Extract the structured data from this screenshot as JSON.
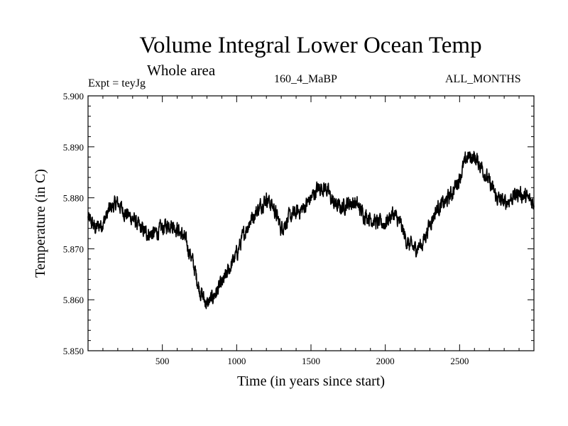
{
  "header": {
    "title": "Volume Integral Lower Ocean Temp",
    "subtitle": "Whole area",
    "experiment": "Expt = teyJg",
    "run_name": "160_4_MaBP",
    "months": "ALL_MONTHS"
  },
  "colors": {
    "line": "#000000",
    "axis": "#000000",
    "background": "#ffffff"
  },
  "chart_data": {
    "type": "line",
    "title": "Volume Integral Lower Ocean Temp",
    "subtitle": "Whole area",
    "xlabel": "Time (in years since start)",
    "ylabel": "Temperature (in C)",
    "xlim": [
      0,
      3000
    ],
    "ylim": [
      5.85,
      5.9
    ],
    "x_ticks": [
      500,
      1000,
      1500,
      2000,
      2500
    ],
    "x_tick_labels": [
      "500",
      "1000",
      "1500",
      "2000",
      "2500"
    ],
    "y_ticks": [
      5.85,
      5.86,
      5.87,
      5.88,
      5.89,
      5.9
    ],
    "y_tick_labels": [
      "5.850",
      "5.860",
      "5.870",
      "5.880",
      "5.890",
      "5.900"
    ],
    "grid": false,
    "legend": "none",
    "series": [
      {
        "name": "Volume Integral Lower Ocean Temp",
        "noise_amplitude": 0.0012,
        "x": [
          0,
          50,
          100,
          150,
          200,
          250,
          300,
          350,
          400,
          450,
          500,
          550,
          600,
          650,
          700,
          750,
          800,
          850,
          900,
          950,
          1000,
          1050,
          1100,
          1150,
          1200,
          1250,
          1300,
          1350,
          1400,
          1450,
          1500,
          1550,
          1600,
          1650,
          1700,
          1750,
          1800,
          1850,
          1900,
          1950,
          2000,
          2050,
          2100,
          2150,
          2200,
          2250,
          2300,
          2350,
          2400,
          2450,
          2500,
          2550,
          2600,
          2650,
          2700,
          2750,
          2800,
          2850,
          2900,
          2950,
          3000
        ],
        "values": [
          5.876,
          5.874,
          5.875,
          5.878,
          5.879,
          5.877,
          5.876,
          5.874,
          5.873,
          5.873,
          5.874,
          5.875,
          5.874,
          5.872,
          5.868,
          5.862,
          5.859,
          5.861,
          5.863,
          5.866,
          5.869,
          5.873,
          5.876,
          5.878,
          5.88,
          5.878,
          5.874,
          5.876,
          5.877,
          5.878,
          5.88,
          5.882,
          5.882,
          5.879,
          5.878,
          5.879,
          5.879,
          5.877,
          5.876,
          5.875,
          5.875,
          5.877,
          5.875,
          5.871,
          5.87,
          5.871,
          5.875,
          5.878,
          5.879,
          5.881,
          5.884,
          5.888,
          5.888,
          5.886,
          5.883,
          5.88,
          5.879,
          5.88,
          5.881,
          5.88,
          5.879
        ]
      }
    ]
  }
}
